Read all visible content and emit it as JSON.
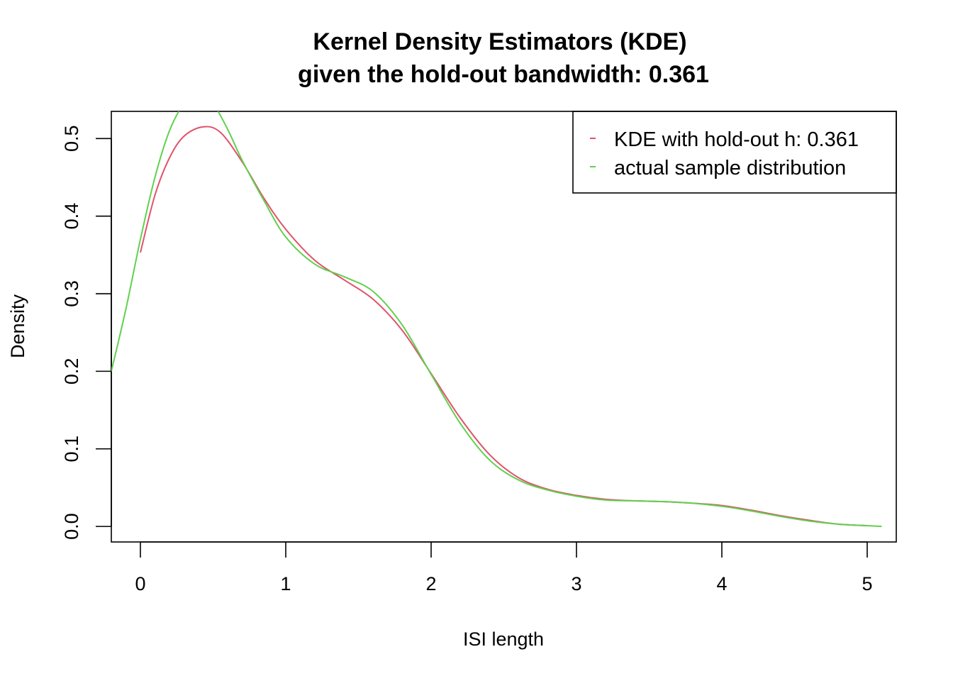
{
  "chart_data": {
    "type": "line",
    "title": "Kernel Density Estimators (KDE)",
    "subtitle": "given the hold-out bandwidth: 0.361",
    "xlabel": "ISI length",
    "ylabel": "Density",
    "xlim": [
      -0.2,
      5.2
    ],
    "ylim": [
      -0.02,
      0.535
    ],
    "x_ticks": [
      0,
      1,
      2,
      3,
      4,
      5
    ],
    "x_tick_labels": [
      "0",
      "1",
      "2",
      "3",
      "4",
      "5"
    ],
    "y_ticks": [
      0.0,
      0.1,
      0.2,
      0.3,
      0.4,
      0.5
    ],
    "y_tick_labels": [
      "0.0",
      "0.1",
      "0.2",
      "0.3",
      "0.4",
      "0.5"
    ],
    "grid": false,
    "legend_position": "top-right",
    "series": [
      {
        "name": "KDE with hold-out h: 0.361",
        "color": "#DF536B",
        "x": [
          0.0,
          0.1,
          0.2,
          0.3,
          0.43,
          0.55,
          0.7,
          0.85,
          1.0,
          1.2,
          1.4,
          1.6,
          1.8,
          2.0,
          2.2,
          2.4,
          2.6,
          2.8,
          3.0,
          3.2,
          3.4,
          3.6,
          3.8,
          4.0,
          4.2,
          4.4,
          4.6,
          4.8,
          5.0
        ],
        "y": [
          0.353,
          0.427,
          0.475,
          0.503,
          0.515,
          0.508,
          0.47,
          0.423,
          0.383,
          0.343,
          0.318,
          0.293,
          0.253,
          0.197,
          0.14,
          0.093,
          0.063,
          0.048,
          0.04,
          0.035,
          0.033,
          0.032,
          0.03,
          0.027,
          0.021,
          0.014,
          0.008,
          0.003,
          0.001
        ]
      },
      {
        "name": "actual sample distribution",
        "color": "#61D04F",
        "x": [
          -0.2,
          -0.1,
          0.0,
          0.1,
          0.2,
          0.3,
          0.4,
          0.5,
          0.6,
          0.7,
          0.85,
          1.0,
          1.2,
          1.4,
          1.6,
          1.8,
          2.0,
          2.2,
          2.4,
          2.6,
          2.8,
          3.0,
          3.2,
          3.4,
          3.6,
          3.8,
          4.0,
          4.2,
          4.4,
          4.6,
          4.8,
          5.0,
          5.1
        ],
        "y": [
          0.2,
          0.28,
          0.37,
          0.45,
          0.51,
          0.545,
          0.56,
          0.545,
          0.512,
          0.472,
          0.42,
          0.373,
          0.338,
          0.322,
          0.303,
          0.26,
          0.196,
          0.133,
          0.086,
          0.06,
          0.047,
          0.039,
          0.034,
          0.033,
          0.032,
          0.03,
          0.026,
          0.02,
          0.013,
          0.007,
          0.003,
          0.001,
          0.0
        ]
      }
    ]
  }
}
